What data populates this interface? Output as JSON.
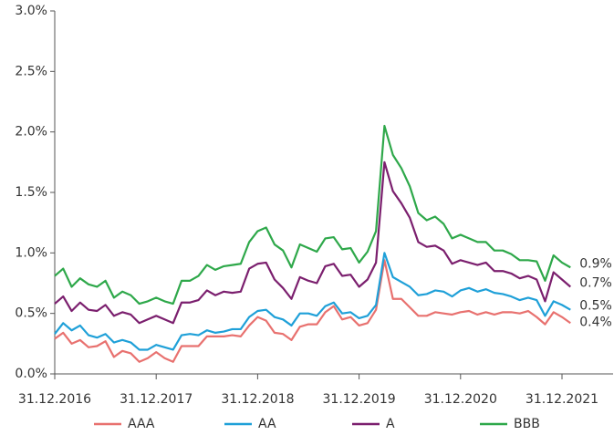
{
  "chart_data": {
    "type": "line",
    "categories": [
      "31.12.2016",
      null,
      null,
      null,
      null,
      null,
      null,
      null,
      null,
      null,
      null,
      null,
      "31.12.2017",
      null,
      null,
      null,
      null,
      null,
      null,
      null,
      null,
      null,
      null,
      null,
      "31.12.2018",
      null,
      null,
      null,
      null,
      null,
      null,
      null,
      null,
      null,
      null,
      null,
      "31.12.2019",
      null,
      null,
      null,
      null,
      null,
      null,
      null,
      null,
      null,
      null,
      null,
      "31.12.2020",
      null,
      null,
      null,
      null,
      null,
      null,
      null,
      null,
      null,
      null,
      null,
      "31.12.2021",
      null
    ],
    "series": [
      {
        "name": "AAA",
        "color": "#e8716f",
        "values": [
          0.29,
          0.34,
          0.25,
          0.28,
          0.22,
          0.23,
          0.27,
          0.14,
          0.19,
          0.17,
          0.1,
          0.13,
          0.18,
          0.13,
          0.1,
          0.23,
          0.23,
          0.23,
          0.31,
          0.31,
          0.31,
          0.32,
          0.31,
          0.4,
          0.47,
          0.44,
          0.34,
          0.33,
          0.28,
          0.39,
          0.41,
          0.41,
          0.51,
          0.56,
          0.45,
          0.47,
          0.4,
          0.42,
          0.53,
          0.94,
          0.62,
          0.62,
          0.55,
          0.48,
          0.48,
          0.51,
          0.5,
          0.49,
          0.51,
          0.52,
          0.49,
          0.51,
          0.49,
          0.51,
          0.51,
          0.5,
          0.52,
          0.47,
          0.41,
          0.51,
          0.47,
          0.42
        ],
        "value_labels": [
          null,
          null,
          null,
          null,
          null,
          null,
          null,
          null,
          null,
          null,
          null,
          null,
          null,
          null,
          null,
          null,
          null,
          null,
          null,
          null,
          null,
          null,
          null,
          null,
          null,
          null,
          null,
          null,
          null,
          null,
          null,
          null,
          null,
          null,
          null,
          null,
          null,
          null,
          null,
          null,
          null,
          null,
          null,
          null,
          null,
          null,
          null,
          null,
          null,
          null,
          null,
          null,
          null,
          null,
          null,
          null,
          null,
          null,
          null,
          null,
          null,
          "0.4%"
        ]
      },
      {
        "name": "AA",
        "color": "#1fa0d8",
        "values": [
          0.33,
          0.42,
          0.36,
          0.4,
          0.32,
          0.3,
          0.33,
          0.26,
          0.28,
          0.26,
          0.2,
          0.2,
          0.24,
          0.22,
          0.2,
          0.32,
          0.33,
          0.32,
          0.36,
          0.34,
          0.35,
          0.37,
          0.37,
          0.47,
          0.52,
          0.53,
          0.47,
          0.45,
          0.4,
          0.5,
          0.5,
          0.48,
          0.56,
          0.59,
          0.5,
          0.51,
          0.46,
          0.48,
          0.57,
          1.0,
          0.8,
          0.76,
          0.72,
          0.65,
          0.66,
          0.69,
          0.68,
          0.64,
          0.69,
          0.71,
          0.68,
          0.7,
          0.67,
          0.66,
          0.64,
          0.61,
          0.63,
          0.61,
          0.48,
          0.6,
          0.57,
          0.53
        ],
        "value_labels": [
          null,
          null,
          null,
          null,
          null,
          null,
          null,
          null,
          null,
          null,
          null,
          null,
          null,
          null,
          null,
          null,
          null,
          null,
          null,
          null,
          null,
          null,
          null,
          null,
          null,
          null,
          null,
          null,
          null,
          null,
          null,
          null,
          null,
          null,
          null,
          null,
          null,
          null,
          null,
          null,
          null,
          null,
          null,
          null,
          null,
          null,
          null,
          null,
          null,
          null,
          null,
          null,
          null,
          null,
          null,
          null,
          null,
          null,
          null,
          null,
          null,
          "0.5%"
        ]
      },
      {
        "name": "A",
        "color": "#7b1f6e",
        "values": [
          0.58,
          0.64,
          0.52,
          0.59,
          0.53,
          0.52,
          0.57,
          0.48,
          0.51,
          0.49,
          0.42,
          0.45,
          0.48,
          0.45,
          0.42,
          0.59,
          0.59,
          0.61,
          0.69,
          0.65,
          0.68,
          0.67,
          0.68,
          0.87,
          0.91,
          0.92,
          0.78,
          0.71,
          0.62,
          0.8,
          0.77,
          0.75,
          0.89,
          0.91,
          0.81,
          0.82,
          0.72,
          0.78,
          0.92,
          1.75,
          1.51,
          1.41,
          1.29,
          1.09,
          1.05,
          1.06,
          1.02,
          0.91,
          0.94,
          0.92,
          0.9,
          0.92,
          0.85,
          0.85,
          0.83,
          0.79,
          0.81,
          0.78,
          0.6,
          0.84,
          0.78,
          0.72
        ],
        "value_labels": [
          null,
          null,
          null,
          null,
          null,
          null,
          null,
          null,
          null,
          null,
          null,
          null,
          null,
          null,
          null,
          null,
          null,
          null,
          null,
          null,
          null,
          null,
          null,
          null,
          null,
          null,
          null,
          null,
          null,
          null,
          null,
          null,
          null,
          null,
          null,
          null,
          null,
          null,
          null,
          null,
          null,
          null,
          null,
          null,
          null,
          null,
          null,
          null,
          null,
          null,
          null,
          null,
          null,
          null,
          null,
          null,
          null,
          null,
          null,
          null,
          null,
          "0.7%"
        ]
      },
      {
        "name": "BBB",
        "color": "#2ea84a",
        "values": [
          0.81,
          0.87,
          0.72,
          0.79,
          0.74,
          0.72,
          0.77,
          0.63,
          0.68,
          0.65,
          0.58,
          0.6,
          0.63,
          0.6,
          0.58,
          0.77,
          0.77,
          0.81,
          0.9,
          0.86,
          0.89,
          0.9,
          0.91,
          1.09,
          1.18,
          1.21,
          1.07,
          1.02,
          0.88,
          1.07,
          1.04,
          1.01,
          1.12,
          1.13,
          1.03,
          1.04,
          0.92,
          1.01,
          1.18,
          2.05,
          1.81,
          1.7,
          1.55,
          1.33,
          1.27,
          1.3,
          1.24,
          1.12,
          1.15,
          1.12,
          1.09,
          1.09,
          1.02,
          1.02,
          0.99,
          0.94,
          0.94,
          0.93,
          0.77,
          0.98,
          0.92,
          0.88
        ],
        "value_labels": [
          null,
          null,
          null,
          null,
          null,
          null,
          null,
          null,
          null,
          null,
          null,
          null,
          null,
          null,
          null,
          null,
          null,
          null,
          null,
          null,
          null,
          null,
          null,
          null,
          null,
          null,
          null,
          null,
          null,
          null,
          null,
          null,
          null,
          null,
          null,
          null,
          null,
          null,
          null,
          null,
          null,
          null,
          null,
          null,
          null,
          null,
          null,
          null,
          null,
          null,
          null,
          null,
          null,
          null,
          null,
          null,
          null,
          null,
          null,
          null,
          null,
          "0.9%"
        ]
      }
    ],
    "ylim": [
      0,
      3
    ],
    "yticks": [
      {
        "value": 0,
        "label": "0.0%"
      },
      {
        "value": 0.5,
        "label": "0.5%"
      },
      {
        "value": 1,
        "label": "1.0%"
      },
      {
        "value": 1.5,
        "label": "1.5%"
      },
      {
        "value": 2,
        "label": "2.0%"
      },
      {
        "value": 2.5,
        "label": "2.5%"
      },
      {
        "value": 3,
        "label": "3.0%"
      }
    ],
    "legend": "bottom"
  }
}
